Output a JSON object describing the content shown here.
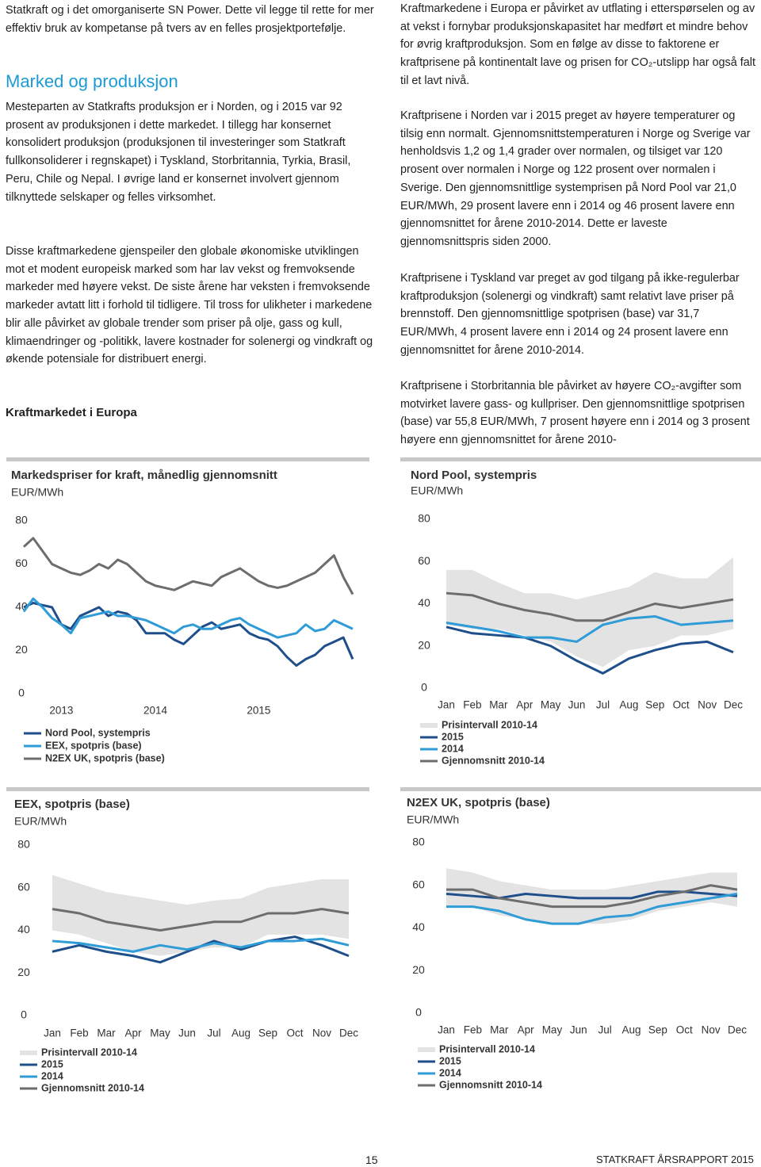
{
  "left_column": {
    "intro": "Statkraft og i det omorganiserte SN Power. Dette vil legge til rette for mer effektiv bruk av kompetanse på tvers av en felles prosjektportefølje.",
    "heading": "Marked og produksjon",
    "paragraphs": [
      "Mesteparten av Statkrafts produksjon er i Norden, og i 2015 var 92 prosent av produksjonen i dette markedet. I tillegg har konsernet konsolidert produksjon (produksjonen til investeringer som Statkraft fullkonsoliderer i regnskapet) i Tyskland, Storbritannia, Tyrkia, Brasil, Peru, Chile og Nepal. I øvrige land er konsernet involvert gjennom tilknyttede selskaper og felles virksomhet.",
      "Disse kraftmarkedene gjenspeiler den globale økonomiske utviklingen mot et modent europeisk marked som har lav vekst og fremvoksende markeder med høyere vekst. De siste årene har veksten i fremvoksende markeder avtatt litt i forhold til tidligere. Til tross for ulikheter i markedene blir alle påvirket av globale trender som priser på olje, gass og kull, klimaendringer og -politikk, lavere kostnader for solenergi og vindkraft og økende potensiale for distribuert energi."
    ],
    "subheading": "Kraftmarkedet i Europa"
  },
  "right_column": {
    "paragraphs": [
      "Kraftmarkedene i Europa er påvirket av utflating i etterspørselen og av at vekst i fornybar produksjonskapasitet har medført et mindre behov for øvrig kraftproduksjon. Som en følge av disse to faktorene er kraftprisene på kontinentalt lave og prisen for CO₂-utslipp har også falt til et lavt nivå.",
      "Kraftprisene i Norden var i 2015 preget av høyere temperaturer og tilsig enn normalt. Gjennomsnittstemperaturen i Norge og Sverige var henholdsvis 1,2 og 1,4 grader over normalen, og tilsiget var 120 prosent over normalen i Norge og 122 prosent over normalen i Sverige. Den gjennomsnittlige systemprisen på Nord Pool var 21,0 EUR/MWh, 29 prosent lavere enn i 2014 og 46 prosent lavere enn gjennomsnittet for årene 2010-2014. Dette er laveste gjennomsnittspris siden 2000.",
      "Kraftprisene i Tyskland var preget av god tilgang på ikke-regulerbar kraftproduksjon (solenergi og vindkraft) samt relativt lave priser på brennstoff. Den gjennomsnittlige spotprisen (base) var 31,7 EUR/MWh, 4 prosent lavere enn i 2014 og 24 prosent lavere enn gjennomsnittet for årene 2010-2014.",
      "Kraftprisene i Storbritannia ble påvirket av høyere CO₂-avgifter som motvirket lavere gass- og kullpriser. Den gjennomsnittlige spotprisen (base) var 55,8 EUR/MWh, 7 prosent høyere enn i 2014 og 3 prosent høyere enn gjennomsnittet for årene 2010-"
    ]
  },
  "chart_data": [
    {
      "type": "line",
      "title": "Markedspriser for kraft, månedlig gjennomsnitt",
      "y_label": "EUR/MWh",
      "categories": [
        null,
        null,
        null,
        null,
        "2013",
        null,
        null,
        null,
        null,
        null,
        null,
        null,
        null,
        null,
        "2014",
        null,
        null,
        null,
        null,
        null,
        null,
        null,
        null,
        null,
        null,
        "2015",
        null,
        null,
        null,
        null,
        null,
        null,
        null,
        null,
        null,
        null
      ],
      "ylim": [
        0,
        80
      ],
      "yticks": [
        0,
        20,
        40,
        60,
        80
      ],
      "series": [
        {
          "name": "Nord Pool, systempris",
          "color": "#1f4f8b",
          "values": [
            40,
            42,
            41,
            40,
            32,
            30,
            36,
            38,
            40,
            36,
            38,
            37,
            34,
            28,
            28,
            28,
            25,
            23,
            27,
            31,
            33,
            30,
            31,
            32,
            28,
            26,
            25,
            22,
            17,
            13,
            16,
            18,
            22,
            24,
            26,
            16
          ]
        },
        {
          "name": "EEX, spotpris (base)",
          "color": "#2f9bd7",
          "values": [
            38,
            44,
            40,
            35,
            32,
            28,
            35,
            36,
            37,
            38,
            36,
            36,
            35,
            34,
            32,
            30,
            28,
            31,
            32,
            30,
            30,
            32,
            34,
            35,
            32,
            30,
            28,
            26,
            27,
            28,
            32,
            29,
            30,
            34,
            32,
            30
          ]
        },
        {
          "name": "N2EX UK, spotpris (base)",
          "color": "#6d6d6d",
          "values": [
            68,
            72,
            66,
            60,
            58,
            56,
            55,
            57,
            60,
            58,
            62,
            60,
            56,
            52,
            50,
            49,
            48,
            50,
            52,
            51,
            50,
            54,
            56,
            58,
            55,
            52,
            50,
            49,
            50,
            52,
            54,
            56,
            60,
            64,
            54,
            46
          ]
        }
      ]
    },
    {
      "type": "line",
      "title": "Nord Pool, systempris",
      "y_label": "EUR/MWh",
      "categories": [
        "Jan",
        "Feb",
        "Mar",
        "Apr",
        "May",
        "Jun",
        "Jul",
        "Aug",
        "Sep",
        "Oct",
        "Nov",
        "Dec"
      ],
      "ylim": [
        0,
        80
      ],
      "yticks": [
        0,
        20,
        40,
        60,
        80
      ],
      "series": [
        {
          "name": "Prisintervall 2010-14",
          "color": "#e3e3e3",
          "high": [
            56,
            56,
            50,
            45,
            45,
            42,
            45,
            48,
            55,
            52,
            52,
            62
          ],
          "low": [
            30,
            28,
            28,
            25,
            22,
            15,
            10,
            18,
            20,
            25,
            25,
            28
          ]
        },
        {
          "name": "2015",
          "color": "#1f4f8b",
          "values": [
            29,
            26,
            25,
            24,
            20,
            13,
            7,
            14,
            18,
            21,
            22,
            17
          ]
        },
        {
          "name": "2014",
          "color": "#2f9bd7",
          "values": [
            31,
            29,
            27,
            24,
            24,
            22,
            30,
            33,
            34,
            30,
            31,
            32
          ]
        },
        {
          "name": "Gjennomsnitt 2010-14",
          "color": "#6d6d6d",
          "values": [
            45,
            44,
            40,
            37,
            35,
            32,
            32,
            36,
            40,
            38,
            40,
            42
          ]
        }
      ]
    },
    {
      "type": "line",
      "title": "EEX, spotpris (base)",
      "y_label": "EUR/MWh",
      "categories": [
        "Jan",
        "Feb",
        "Mar",
        "Apr",
        "May",
        "Jun",
        "Jul",
        "Aug",
        "Sep",
        "Oct",
        "Nov",
        "Dec"
      ],
      "ylim": [
        0,
        80
      ],
      "yticks": [
        0,
        20,
        40,
        60,
        80
      ],
      "series": [
        {
          "name": "Prisintervall 2010-14",
          "color": "#e3e3e3",
          "high": [
            66,
            62,
            58,
            56,
            54,
            52,
            54,
            55,
            60,
            62,
            64,
            64
          ],
          "low": [
            40,
            38,
            34,
            30,
            28,
            30,
            32,
            32,
            38,
            38,
            38,
            36
          ]
        },
        {
          "name": "2015",
          "color": "#1f4f8b",
          "values": [
            30,
            33,
            30,
            28,
            25,
            30,
            35,
            31,
            35,
            37,
            33,
            28
          ]
        },
        {
          "name": "2014",
          "color": "#2f9bd7",
          "values": [
            35,
            34,
            32,
            30,
            33,
            31,
            34,
            32,
            35,
            35,
            36,
            33
          ]
        },
        {
          "name": "Gjennomsnitt 2010-14",
          "color": "#6d6d6d",
          "values": [
            50,
            48,
            44,
            42,
            40,
            42,
            44,
            44,
            48,
            48,
            50,
            48
          ]
        }
      ]
    },
    {
      "type": "line",
      "title": "N2EX UK, spotpris (base)",
      "y_label": "EUR/MWh",
      "categories": [
        "Jan",
        "Feb",
        "Mar",
        "Apr",
        "May",
        "Jun",
        "Jul",
        "Aug",
        "Sep",
        "Oct",
        "Nov",
        "Dec"
      ],
      "ylim": [
        0,
        80
      ],
      "yticks": [
        0,
        20,
        40,
        60,
        80
      ],
      "series": [
        {
          "name": "Prisintervall 2010-14",
          "color": "#e3e3e3",
          "high": [
            68,
            66,
            62,
            60,
            58,
            58,
            58,
            60,
            62,
            64,
            66,
            66
          ],
          "low": [
            50,
            50,
            46,
            44,
            42,
            42,
            42,
            44,
            48,
            50,
            52,
            50
          ]
        },
        {
          "name": "2015",
          "color": "#1f4f8b",
          "values": [
            56,
            55,
            54,
            56,
            55,
            54,
            54,
            54,
            57,
            57,
            56,
            55
          ]
        },
        {
          "name": "2014",
          "color": "#2f9bd7",
          "values": [
            50,
            50,
            48,
            44,
            42,
            42,
            45,
            46,
            50,
            52,
            54,
            56
          ]
        },
        {
          "name": "Gjennomsnitt 2010-14",
          "color": "#6d6d6d",
          "values": [
            58,
            58,
            54,
            52,
            50,
            50,
            50,
            52,
            55,
            57,
            60,
            58
          ]
        }
      ]
    }
  ],
  "footer": {
    "page_number": "15",
    "publication": "STATKRAFT ÅRSRAPPORT 2015"
  }
}
